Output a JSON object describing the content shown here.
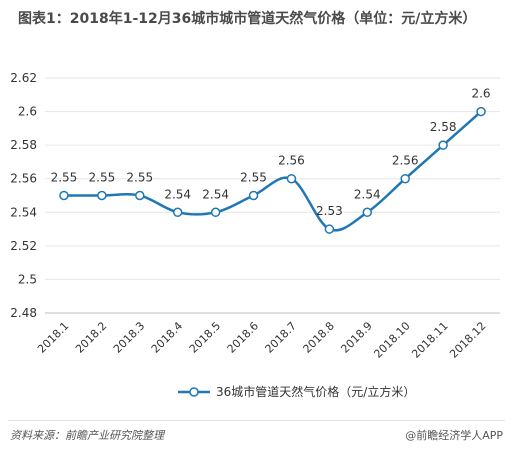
{
  "title": "图表1：2018年1-12月36城市城市管道天然气价格（单位：元/立方米）",
  "footer": {
    "source": "资料来源：前瞻产业研究院整理",
    "brand": "@前瞻经济学人APP"
  },
  "colors": {
    "line": "#1f77b4",
    "marker_fill": "#ffffff",
    "grid": "#e6e6e6"
  },
  "chart_data": {
    "type": "line",
    "categories": [
      "2018.1",
      "2018.2",
      "2018.3",
      "2018.4",
      "2018.5",
      "2018.6",
      "2018.7",
      "2018.8",
      "2018.9",
      "2018.10",
      "2018.11",
      "2018.12"
    ],
    "series": [
      {
        "name": "36城市管道天然气价格（元/立方米）",
        "values": [
          2.55,
          2.55,
          2.55,
          2.54,
          2.54,
          2.55,
          2.56,
          2.53,
          2.54,
          2.56,
          2.58,
          2.6
        ],
        "labels": [
          "2.55",
          "2.55",
          "2.55",
          "2.54",
          "2.54",
          "2.55",
          "2.56",
          "2.53",
          "2.54",
          "2.56",
          "2.58",
          "2.6"
        ]
      }
    ],
    "ylim": [
      2.48,
      2.62
    ],
    "yticks": [
      2.48,
      2.5,
      2.52,
      2.54,
      2.56,
      2.58,
      2.6,
      2.62
    ],
    "ytick_labels": [
      "2.48",
      "2.5",
      "2.52",
      "2.54",
      "2.56",
      "2.58",
      "2.6",
      "2.62"
    ],
    "grid": "horizontal",
    "legend": "bottom",
    "smooth": true
  }
}
